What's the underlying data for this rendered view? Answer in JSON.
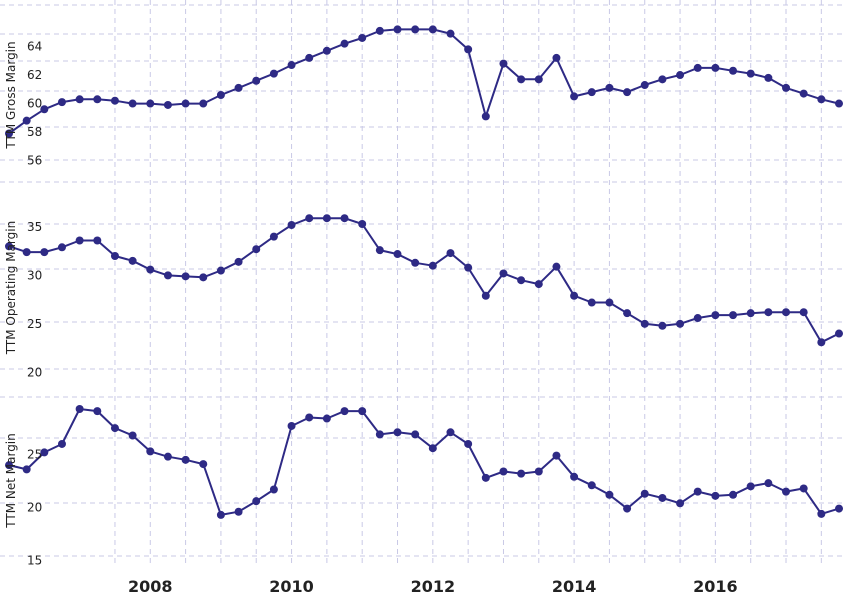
{
  "chart_data": {
    "type": "line",
    "color": "#2e2a85",
    "grid": true,
    "x": [
      2006.0,
      2006.25,
      2006.5,
      2006.75,
      2007.0,
      2007.25,
      2007.5,
      2007.75,
      2008.0,
      2008.25,
      2008.5,
      2008.75,
      2009.0,
      2009.25,
      2009.5,
      2009.75,
      2010.0,
      2010.25,
      2010.5,
      2010.75,
      2011.0,
      2011.25,
      2011.5,
      2011.75,
      2012.0,
      2012.25,
      2012.5,
      2012.75,
      2013.0,
      2013.25,
      2013.5,
      2013.75,
      2014.0,
      2014.25,
      2014.5,
      2014.75,
      2015.0,
      2015.25,
      2015.5,
      2015.75,
      2016.0,
      2016.25,
      2016.5,
      2016.75,
      2017.0,
      2017.25,
      2017.5,
      2017.75
    ],
    "xticks": [
      2008,
      2010,
      2012,
      2014,
      2016
    ],
    "xtick_labels": [
      "2008",
      "2010",
      "2012",
      "2014",
      "2016"
    ],
    "xlim": [
      2006.0,
      2017.75
    ],
    "panels": [
      {
        "ylabel": "TTM Gross Margin",
        "ylim": [
          55.2,
          66.0
        ],
        "yticks": [
          56,
          58,
          60,
          62,
          64
        ],
        "ytick_labels": [
          "56",
          "58",
          "60",
          "62",
          "64"
        ],
        "values": [
          57.9,
          58.8,
          59.6,
          60.1,
          60.3,
          60.3,
          60.2,
          60.0,
          60.0,
          59.9,
          60.0,
          60.0,
          60.6,
          61.1,
          61.6,
          62.1,
          62.7,
          63.2,
          63.7,
          64.2,
          64.6,
          65.1,
          65.2,
          65.2,
          65.2,
          64.9,
          63.8,
          59.1,
          62.8,
          61.7,
          61.7,
          63.2,
          60.5,
          60.8,
          61.1,
          60.8,
          61.3,
          61.7,
          62.0,
          62.5,
          62.5,
          62.3,
          62.1,
          61.8,
          61.1,
          60.7,
          60.3,
          60.0
        ]
      },
      {
        "ylabel": "TTM Operating Margin",
        "ylim": [
          19.0,
          38.5
        ],
        "yticks": [
          20,
          25,
          30,
          35
        ],
        "ytick_labels": [
          "20",
          "25",
          "30",
          "35"
        ],
        "values": [
          33.0,
          32.4,
          32.4,
          32.9,
          33.6,
          33.6,
          32.0,
          31.5,
          30.6,
          30.0,
          29.9,
          29.8,
          30.5,
          31.4,
          32.7,
          34.0,
          35.2,
          35.9,
          35.9,
          35.9,
          35.3,
          32.6,
          32.2,
          31.3,
          31.0,
          32.3,
          30.8,
          27.9,
          30.2,
          29.5,
          29.1,
          30.9,
          27.9,
          27.2,
          27.2,
          26.1,
          25.0,
          24.8,
          25.0,
          25.6,
          25.9,
          25.9,
          26.1,
          26.2,
          26.2,
          26.2,
          23.1,
          24.0
        ]
      },
      {
        "ylabel": "TTM Net Margin",
        "ylim": [
          14.1,
          31.0
        ],
        "yticks": [
          15,
          20,
          25
        ],
        "ytick_labels": [
          "15",
          "20",
          "25"
        ],
        "values": [
          24.0,
          23.6,
          25.2,
          26.0,
          29.3,
          29.1,
          27.5,
          26.8,
          25.3,
          24.8,
          24.5,
          24.1,
          19.3,
          19.6,
          20.6,
          21.7,
          27.7,
          28.5,
          28.4,
          29.1,
          29.1,
          26.9,
          27.1,
          26.9,
          25.6,
          27.1,
          26.0,
          22.8,
          23.4,
          23.2,
          23.4,
          24.9,
          22.9,
          22.1,
          21.2,
          19.9,
          21.3,
          20.9,
          20.4,
          21.5,
          21.1,
          21.2,
          22.0,
          22.3,
          21.5,
          21.8,
          19.4,
          19.9
        ]
      }
    ]
  }
}
